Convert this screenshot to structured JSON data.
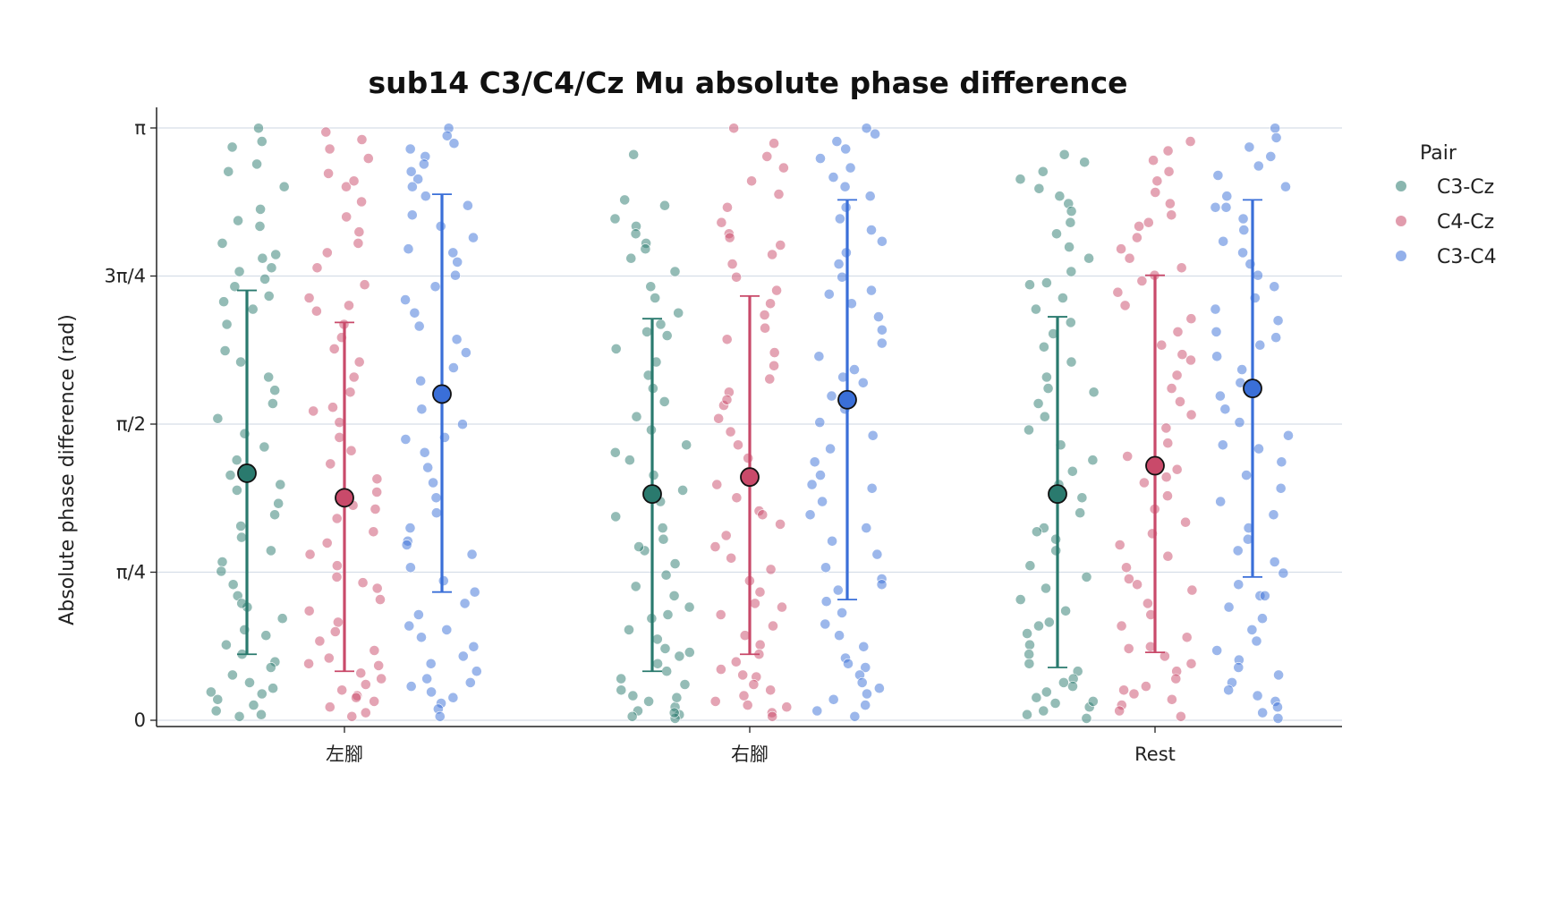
{
  "chart_data": {
    "type": "scatter",
    "title": "sub14 C3/C4/Cz Mu absolute phase difference",
    "xlabel": "",
    "ylabel": "Absolute phase difference (rad)",
    "categories": [
      "左腳",
      "右腳",
      "Rest"
    ],
    "ylim": [
      0,
      3.1416
    ],
    "yticks": [
      {
        "value": 0,
        "label": "0"
      },
      {
        "value": 0.7854,
        "label": "π/4"
      },
      {
        "value": 1.5708,
        "label": "π/2"
      },
      {
        "value": 2.3562,
        "label": "3π/4"
      },
      {
        "value": 3.1416,
        "label": "π"
      }
    ],
    "grid": "horizontal",
    "legend": {
      "title": "Pair",
      "placement": "outside-right"
    },
    "series": [
      {
        "name": "C3-Cz",
        "color": "#2a7a6e",
        "mean": [
          1.31,
          1.2,
          1.2
        ],
        "sd_low": [
          0.35,
          0.26,
          0.28
        ],
        "sd_high": [
          2.28,
          2.13,
          2.14
        ],
        "points": [
          [
            3.14,
            3.04,
            2.95,
            2.83,
            2.71,
            2.62,
            2.53,
            2.47,
            2.45,
            2.4,
            2.34,
            2.3,
            2.25,
            2.22,
            2.18,
            2.1,
            1.96,
            1.82,
            1.75,
            1.68,
            1.6,
            1.52,
            1.45,
            1.38,
            1.3,
            1.22,
            1.15,
            1.09,
            1.03,
            0.97,
            0.9,
            0.84,
            0.79,
            0.72,
            0.66,
            0.6,
            0.54,
            0.48,
            0.45,
            0.4,
            0.35,
            0.31,
            0.28,
            0.24,
            0.2,
            0.17,
            0.14,
            0.11,
            0.08,
            0.05,
            0.03,
            0.02,
            3.07,
            2.91,
            2.65,
            2.38,
            1.9,
            1.25,
            0.62,
            0.15
          ],
          [
            3.0,
            2.76,
            2.73,
            2.66,
            2.62,
            2.58,
            2.53,
            2.45,
            2.38,
            2.3,
            2.24,
            2.16,
            2.1,
            2.04,
            1.97,
            1.9,
            1.83,
            1.76,
            1.69,
            1.61,
            1.54,
            1.46,
            1.38,
            1.3,
            1.22,
            1.16,
            1.08,
            1.02,
            0.96,
            0.9,
            0.83,
            0.77,
            0.71,
            0.66,
            0.6,
            0.54,
            0.48,
            0.43,
            0.38,
            0.34,
            0.3,
            0.26,
            0.22,
            0.19,
            0.16,
            0.13,
            0.1,
            0.07,
            0.05,
            0.03,
            0.02,
            0.01,
            2.5,
            2.06,
            1.42,
            0.92,
            0.56,
            0.12,
            0.04,
            0.36
          ],
          [
            3.0,
            2.96,
            2.91,
            2.87,
            2.82,
            2.78,
            2.74,
            2.7,
            2.64,
            2.58,
            2.51,
            2.45,
            2.38,
            2.31,
            2.24,
            2.18,
            2.11,
            2.05,
            1.98,
            1.9,
            1.82,
            1.76,
            1.68,
            1.61,
            1.54,
            1.46,
            1.38,
            1.32,
            1.25,
            1.18,
            1.1,
            1.02,
            0.96,
            0.9,
            0.82,
            0.76,
            0.7,
            0.64,
            0.58,
            0.52,
            0.46,
            0.4,
            0.35,
            0.3,
            0.26,
            0.22,
            0.18,
            0.15,
            0.12,
            0.09,
            0.07,
            0.05,
            0.03,
            0.01,
            2.32,
            1.74,
            1.0,
            0.5,
            0.2,
            0.1
          ]
        ]
      },
      {
        "name": "C4-Cz",
        "color": "#c94a6a",
        "mean": [
          1.18,
          1.29,
          1.35
        ],
        "sd_low": [
          0.26,
          0.35,
          0.36
        ],
        "sd_high": [
          2.11,
          2.25,
          2.36
        ],
        "points": [
          [
            3.12,
            3.08,
            3.03,
            2.98,
            2.9,
            2.83,
            2.75,
            2.67,
            2.59,
            2.53,
            2.48,
            2.4,
            2.31,
            2.24,
            2.17,
            2.1,
            2.03,
            1.97,
            1.9,
            1.82,
            1.74,
            1.66,
            1.58,
            1.5,
            1.43,
            1.36,
            1.28,
            1.21,
            1.14,
            1.07,
            1.0,
            0.94,
            0.88,
            0.82,
            0.76,
            0.7,
            0.64,
            0.58,
            0.52,
            0.47,
            0.42,
            0.37,
            0.33,
            0.29,
            0.25,
            0.22,
            0.19,
            0.16,
            0.13,
            0.1,
            0.07,
            0.04,
            0.02,
            2.86,
            2.2,
            1.64,
            1.12,
            0.73,
            0.3,
            0.12
          ],
          [
            3.14,
            3.06,
            2.99,
            2.93,
            2.86,
            2.79,
            2.72,
            2.64,
            2.58,
            2.52,
            2.47,
            2.42,
            2.35,
            2.28,
            2.21,
            2.15,
            2.08,
            2.02,
            1.95,
            1.88,
            1.81,
            1.74,
            1.67,
            1.6,
            1.53,
            1.46,
            1.39,
            1.32,
            1.25,
            1.18,
            1.11,
            1.04,
            0.98,
            0.92,
            0.86,
            0.8,
            0.74,
            0.68,
            0.62,
            0.56,
            0.5,
            0.45,
            0.4,
            0.35,
            0.31,
            0.27,
            0.23,
            0.19,
            0.16,
            0.13,
            0.1,
            0.07,
            0.04,
            0.02,
            2.56,
            1.7,
            1.09,
            0.6,
            0.24,
            0.08
          ],
          [
            3.07,
            3.02,
            2.97,
            2.91,
            2.86,
            2.8,
            2.74,
            2.68,
            2.62,
            2.56,
            2.5,
            2.45,
            2.4,
            2.36,
            2.33,
            2.27,
            2.2,
            2.13,
            2.06,
            1.99,
            1.91,
            1.83,
            1.76,
            1.69,
            1.62,
            1.55,
            1.47,
            1.4,
            1.33,
            1.26,
            1.19,
            1.12,
            1.05,
            0.99,
            0.93,
            0.87,
            0.81,
            0.75,
            0.69,
            0.62,
            0.56,
            0.5,
            0.44,
            0.39,
            0.34,
            0.3,
            0.26,
            0.22,
            0.18,
            0.14,
            0.11,
            0.08,
            0.05,
            0.02,
            2.64,
            1.94,
            1.29,
            0.72,
            0.38,
            0.16
          ]
        ]
      },
      {
        "name": "C3-C4",
        "color": "#3a6fd8",
        "mean": [
          1.73,
          1.7,
          1.76
        ],
        "sd_low": [
          0.68,
          0.64,
          0.76
        ],
        "sd_high": [
          2.79,
          2.76,
          2.76
        ],
        "points": [
          [
            3.14,
            3.1,
            3.06,
            3.03,
            2.99,
            2.95,
            2.91,
            2.87,
            2.83,
            2.78,
            2.73,
            2.68,
            2.62,
            2.56,
            2.5,
            2.43,
            2.36,
            2.3,
            2.23,
            2.16,
            2.09,
            2.02,
            1.95,
            1.87,
            1.8,
            1.73,
            1.65,
            1.57,
            1.49,
            1.42,
            1.34,
            1.26,
            1.18,
            1.1,
            1.02,
            0.95,
            0.88,
            0.81,
            0.74,
            0.68,
            0.62,
            0.56,
            0.5,
            0.44,
            0.39,
            0.34,
            0.3,
            0.26,
            0.22,
            0.18,
            0.15,
            0.12,
            0.09,
            0.06,
            0.02,
            2.48,
            1.5,
            0.93,
            0.48,
            0.2
          ],
          [
            3.14,
            3.11,
            3.07,
            3.03,
            2.98,
            2.93,
            2.88,
            2.83,
            2.78,
            2.72,
            2.66,
            2.6,
            2.54,
            2.48,
            2.42,
            2.35,
            2.28,
            2.21,
            2.14,
            2.07,
            2.0,
            1.93,
            1.86,
            1.79,
            1.72,
            1.65,
            1.58,
            1.51,
            1.44,
            1.37,
            1.3,
            1.23,
            1.16,
            1.09,
            1.02,
            0.95,
            0.88,
            0.81,
            0.75,
            0.69,
            0.63,
            0.57,
            0.51,
            0.45,
            0.39,
            0.33,
            0.28,
            0.24,
            0.2,
            0.17,
            0.14,
            0.11,
            0.08,
            0.05,
            0.02,
            2.26,
            1.82,
            1.25,
            0.72,
            0.3
          ],
          [
            3.14,
            3.09,
            3.04,
            2.99,
            2.94,
            2.89,
            2.83,
            2.78,
            2.72,
            2.66,
            2.6,
            2.54,
            2.48,
            2.42,
            2.36,
            2.3,
            2.24,
            2.18,
            2.12,
            2.06,
            1.99,
            1.93,
            1.86,
            1.79,
            1.72,
            1.65,
            1.58,
            1.51,
            1.44,
            1.37,
            1.3,
            1.23,
            1.16,
            1.09,
            1.02,
            0.96,
            0.9,
            0.84,
            0.78,
            0.72,
            0.66,
            0.6,
            0.54,
            0.48,
            0.42,
            0.37,
            0.32,
            0.28,
            0.24,
            0.2,
            0.16,
            0.13,
            0.1,
            0.07,
            0.04,
            0.01,
            2.72,
            2.03,
            1.46,
            0.66
          ]
        ]
      }
    ]
  }
}
